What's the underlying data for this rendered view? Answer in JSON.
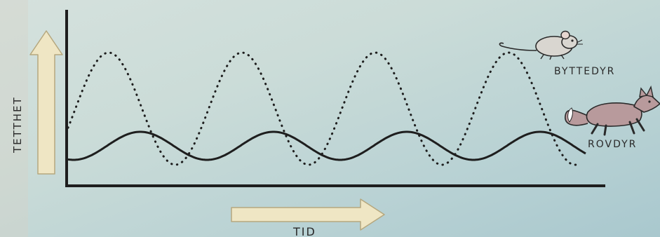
{
  "labels": {
    "y_axis": "TETTHET",
    "x_axis": "TID",
    "prey": "BYTTEDYR",
    "predator": "ROVDYR"
  },
  "icons": {
    "prey": "mouse-icon",
    "predator": "fox-icon"
  },
  "colors": {
    "background": "#c7dbd8",
    "axis": "#1e1e1e",
    "curve": "#1e1e1e",
    "arrow_fill": "#efe6c4",
    "arrow_stroke": "#b5a77e",
    "fox_fur": "#b89a9c",
    "mouse_fur": "#d9d6d0"
  }
}
